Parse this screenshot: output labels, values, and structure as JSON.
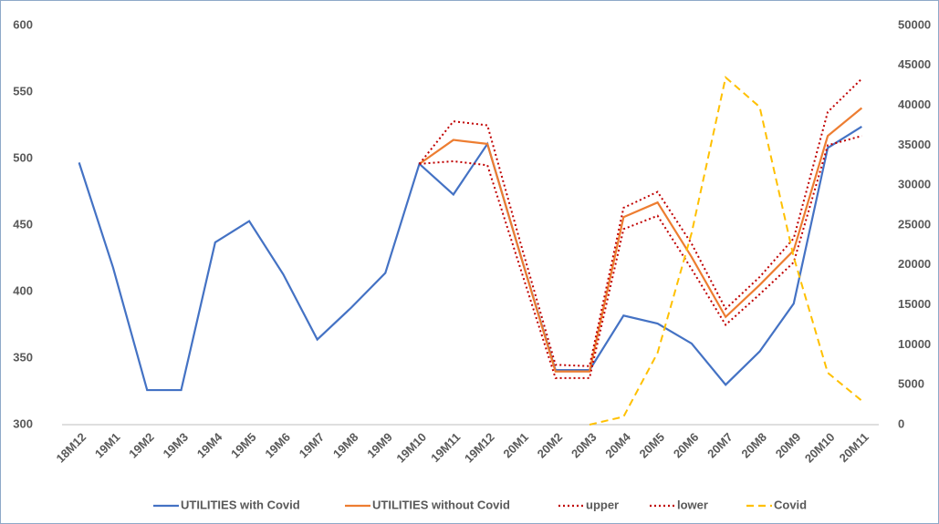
{
  "chart_data": {
    "type": "line",
    "categories": [
      "18M12",
      "19M1",
      "19M2",
      "19M3",
      "19M4",
      "19M5",
      "19M6",
      "19M7",
      "19M8",
      "19M9",
      "19M10",
      "19M11",
      "19M12",
      "20M1",
      "20M2",
      "20M3",
      "20M4",
      "20M5",
      "20M6",
      "20M7",
      "20M8",
      "20M9",
      "20M10",
      "20M11"
    ],
    "series": [
      {
        "name": "UTILITIES with Covid",
        "color": "#4472c4",
        "style": "solid",
        "values": [
          497,
          418,
          326,
          326,
          437,
          453,
          413,
          364,
          388,
          414,
          496,
          473,
          511,
          425,
          341,
          341,
          382,
          376,
          361,
          330,
          355,
          391,
          508,
          524
        ]
      },
      {
        "name": "UTILITIES without Covid",
        "color": "#ed7d31",
        "style": "solid",
        "values": [
          null,
          null,
          null,
          null,
          null,
          null,
          null,
          null,
          null,
          null,
          496,
          514,
          511,
          425,
          340,
          340,
          456,
          467,
          426,
          381,
          405,
          431,
          517,
          538
        ]
      },
      {
        "name": "upper",
        "color": "#c00000",
        "style": "dotted",
        "values": [
          null,
          null,
          null,
          null,
          null,
          null,
          null,
          null,
          null,
          null,
          496,
          528,
          525,
          434,
          345,
          344,
          463,
          475,
          436,
          387,
          411,
          440,
          535,
          560
        ]
      },
      {
        "name": "lower",
        "color": "#c00000",
        "style": "dotted",
        "values": [
          null,
          null,
          null,
          null,
          null,
          null,
          null,
          null,
          null,
          null,
          496,
          498,
          495,
          415,
          335,
          335,
          447,
          457,
          417,
          375,
          398,
          422,
          510,
          517
        ]
      },
      {
        "name": "Covid",
        "color": "#ffc000",
        "style": "dashed",
        "axis": "y2",
        "values": [
          null,
          null,
          null,
          null,
          null,
          null,
          null,
          null,
          null,
          null,
          null,
          null,
          null,
          null,
          null,
          0,
          1000,
          9000,
          24000,
          43500,
          39800,
          21000,
          6500,
          3000
        ]
      }
    ],
    "ylim": [
      300,
      600
    ],
    "yticks": [
      300,
      350,
      400,
      450,
      500,
      550,
      600
    ],
    "y2lim": [
      0,
      50000
    ],
    "y2ticks": [
      0,
      5000,
      10000,
      15000,
      20000,
      25000,
      30000,
      35000,
      40000,
      45000,
      50000
    ],
    "grid": true,
    "legend": "bottom"
  }
}
